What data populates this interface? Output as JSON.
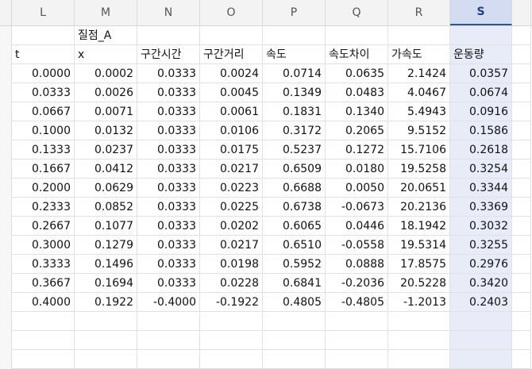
{
  "columns": [
    "L",
    "M",
    "N",
    "O",
    "P",
    "Q",
    "R",
    "S"
  ],
  "selected_column": "S",
  "label_row": [
    "",
    "질점_A",
    "",
    "",
    "",
    "",
    "",
    ""
  ],
  "header_row": [
    "t",
    "x",
    "구간시간",
    "구간거리",
    "속도",
    "속도차이",
    "가속도",
    "운동량"
  ],
  "rows": [
    [
      "0.0000",
      "0.0002",
      "0.0333",
      "0.0024",
      "0.0714",
      "0.0635",
      "2.1424",
      "0.0357"
    ],
    [
      "0.0333",
      "0.0026",
      "0.0333",
      "0.0045",
      "0.1349",
      "0.0483",
      "4.0467",
      "0.0674"
    ],
    [
      "0.0667",
      "0.0071",
      "0.0333",
      "0.0061",
      "0.1831",
      "0.1340",
      "5.4943",
      "0.0916"
    ],
    [
      "0.1000",
      "0.0132",
      "0.0333",
      "0.0106",
      "0.3172",
      "0.2065",
      "9.5152",
      "0.1586"
    ],
    [
      "0.1333",
      "0.0237",
      "0.0333",
      "0.0175",
      "0.5237",
      "0.1272",
      "15.7106",
      "0.2618"
    ],
    [
      "0.1667",
      "0.0412",
      "0.0333",
      "0.0217",
      "0.6509",
      "0.0180",
      "19.5258",
      "0.3254"
    ],
    [
      "0.2000",
      "0.0629",
      "0.0333",
      "0.0223",
      "0.6688",
      "0.0050",
      "20.0651",
      "0.3344"
    ],
    [
      "0.2333",
      "0.0852",
      "0.0333",
      "0.0225",
      "0.6738",
      "-0.0673",
      "20.2136",
      "0.3369"
    ],
    [
      "0.2667",
      "0.1077",
      "0.0333",
      "0.0202",
      "0.6065",
      "0.0446",
      "18.1942",
      "0.3032"
    ],
    [
      "0.3000",
      "0.1279",
      "0.0333",
      "0.0217",
      "0.6510",
      "-0.0558",
      "19.5314",
      "0.3255"
    ],
    [
      "0.3333",
      "0.1496",
      "0.0333",
      "0.0198",
      "0.5952",
      "0.0888",
      "17.8575",
      "0.2976"
    ],
    [
      "0.3667",
      "0.1694",
      "0.0333",
      "0.0228",
      "0.6841",
      "-0.2036",
      "20.5228",
      "0.3420"
    ],
    [
      "0.4000",
      "0.1922",
      "-0.4000",
      "-0.1922",
      "0.4805",
      "-0.4805",
      "-1.2013",
      "0.2403"
    ]
  ],
  "empty_rows": 3
}
